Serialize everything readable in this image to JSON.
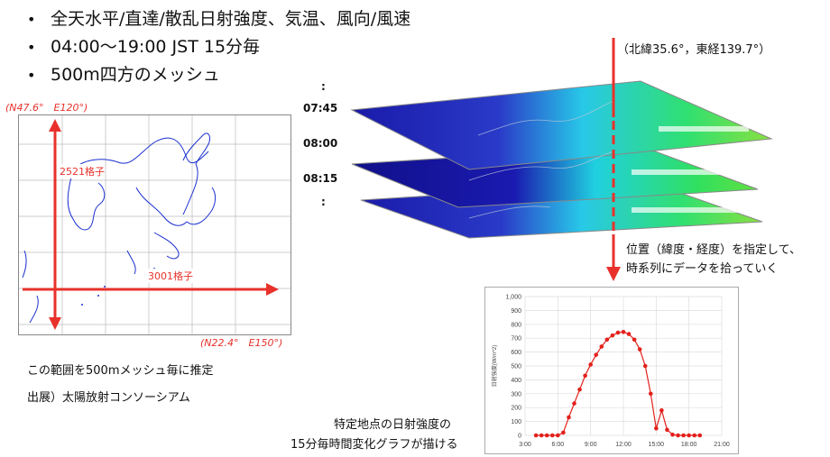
{
  "bullets": [
    "全天水平/直達/散乱日射強度、気温、風向/風速",
    "04:00～19:00 JST 15分毎",
    "500m四方のメッシュ"
  ],
  "map": {
    "nw_corner": "(N47.6°　E120°)",
    "se_corner": "(N22.4°　E150°)",
    "grid_vertical": "2521格子",
    "grid_horizontal": "3001格子",
    "caption": "この範囲を500mメッシュ毎に推定",
    "source": "出展）太陽放射コンソーシアム"
  },
  "layers": {
    "times": [
      "07:45",
      "08:00",
      "08:15"
    ],
    "dots_top": ":",
    "dots_bottom": ":"
  },
  "point": {
    "coord": "（北緯35.6°，東経139.7°）",
    "extract_line1": "位置（緯度・経度）を指定して、",
    "extract_line2": "時系列にデータを拾っていく"
  },
  "chart_caption": {
    "line1": "特定地点の日射強度の",
    "line2": "15分毎時間変化グラフが描ける"
  },
  "colors": {
    "accent_red": "#e8312b",
    "series_red": "#e3201b"
  },
  "chart_data": {
    "type": "line",
    "ylabel": "日射強度(W/m^2)",
    "ylim": [
      0,
      1000
    ],
    "yticks": [
      "0",
      "100",
      "200",
      "300",
      "400",
      "500",
      "600",
      "700",
      "800",
      "900",
      "1,000"
    ],
    "xlim": [
      3,
      21
    ],
    "xticks": [
      "3:00",
      "6:00",
      "9:00",
      "12:00",
      "15:00",
      "18:00",
      "21:00"
    ],
    "series": [
      {
        "x": [
          4.0,
          4.5,
          5.0,
          5.5,
          6.0,
          6.5,
          7.0,
          7.5,
          8.0,
          8.5,
          9.0,
          9.5,
          10.0,
          10.5,
          11.0,
          11.5,
          12.0,
          12.5,
          13.0,
          13.5,
          14.0,
          14.5,
          15.0,
          15.5,
          16.0,
          16.5,
          17.0,
          17.5,
          18.0,
          18.5,
          19.0
        ],
        "y": [
          0,
          0,
          0,
          0,
          0,
          20,
          130,
          230,
          330,
          430,
          510,
          580,
          640,
          690,
          720,
          740,
          745,
          730,
          690,
          620,
          500,
          300,
          50,
          180,
          40,
          5,
          0,
          0,
          0,
          0,
          0
        ]
      }
    ]
  }
}
